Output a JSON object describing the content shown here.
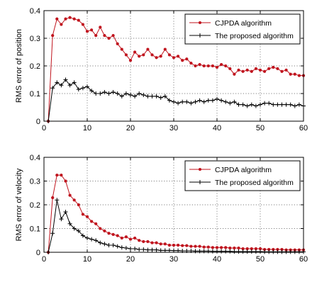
{
  "chart_data": [
    {
      "type": "line",
      "title": "",
      "xlabel": "",
      "ylabel": "RMS error of position",
      "xlim": [
        0,
        60
      ],
      "ylim": [
        0,
        0.4
      ],
      "xticks": [
        "0",
        "10",
        "20",
        "30",
        "40",
        "50",
        "60"
      ],
      "yticks": [
        "0",
        "0.1",
        "0.2",
        "0.3",
        "0.4"
      ],
      "grid": true,
      "legend_position": "top-right",
      "series": [
        {
          "name": "CJPDA algorithm",
          "color": "#c0141e",
          "marker": "dot",
          "x": [
            1,
            2,
            3,
            4,
            5,
            6,
            7,
            8,
            9,
            10,
            11,
            12,
            13,
            14,
            15,
            16,
            17,
            18,
            19,
            20,
            21,
            22,
            23,
            24,
            25,
            26,
            27,
            28,
            29,
            30,
            31,
            32,
            33,
            34,
            35,
            36,
            37,
            38,
            39,
            40,
            41,
            42,
            43,
            44,
            45,
            46,
            47,
            48,
            49,
            50,
            51,
            52,
            53,
            54,
            55,
            56,
            57,
            58,
            59,
            60
          ],
          "values": [
            0,
            0.31,
            0.37,
            0.35,
            0.37,
            0.375,
            0.37,
            0.365,
            0.35,
            0.325,
            0.33,
            0.31,
            0.34,
            0.31,
            0.3,
            0.31,
            0.28,
            0.26,
            0.24,
            0.22,
            0.25,
            0.235,
            0.24,
            0.26,
            0.24,
            0.23,
            0.235,
            0.26,
            0.24,
            0.23,
            0.235,
            0.22,
            0.225,
            0.21,
            0.2,
            0.205,
            0.2,
            0.2,
            0.2,
            0.195,
            0.205,
            0.2,
            0.19,
            0.17,
            0.185,
            0.18,
            0.185,
            0.18,
            0.19,
            0.185,
            0.18,
            0.19,
            0.195,
            0.19,
            0.18,
            0.185,
            0.17,
            0.17,
            0.165,
            0.165
          ]
        },
        {
          "name": "The proposed algorithm",
          "color": "#000000",
          "marker": "plus",
          "x": [
            1,
            2,
            3,
            4,
            5,
            6,
            7,
            8,
            9,
            10,
            11,
            12,
            13,
            14,
            15,
            16,
            17,
            18,
            19,
            20,
            21,
            22,
            23,
            24,
            25,
            26,
            27,
            28,
            29,
            30,
            31,
            32,
            33,
            34,
            35,
            36,
            37,
            38,
            39,
            40,
            41,
            42,
            43,
            44,
            45,
            46,
            47,
            48,
            49,
            50,
            51,
            52,
            53,
            54,
            55,
            56,
            57,
            58,
            59,
            60
          ],
          "values": [
            0,
            0.12,
            0.14,
            0.13,
            0.15,
            0.13,
            0.14,
            0.115,
            0.12,
            0.125,
            0.11,
            0.1,
            0.1,
            0.105,
            0.1,
            0.105,
            0.1,
            0.09,
            0.1,
            0.095,
            0.09,
            0.1,
            0.095,
            0.09,
            0.09,
            0.09,
            0.085,
            0.09,
            0.075,
            0.07,
            0.065,
            0.07,
            0.07,
            0.065,
            0.07,
            0.075,
            0.07,
            0.075,
            0.075,
            0.08,
            0.075,
            0.07,
            0.065,
            0.07,
            0.06,
            0.06,
            0.055,
            0.06,
            0.055,
            0.06,
            0.065,
            0.065,
            0.06,
            0.06,
            0.06,
            0.06,
            0.06,
            0.055,
            0.06,
            0.055
          ]
        }
      ]
    },
    {
      "type": "line",
      "title": "",
      "xlabel": "",
      "ylabel": "RMS error of velocity",
      "xlim": [
        0,
        60
      ],
      "ylim": [
        0,
        0.4
      ],
      "xticks": [
        "0",
        "10",
        "20",
        "30",
        "40",
        "50",
        "60"
      ],
      "yticks": [
        "0",
        "0.1",
        "0.2",
        "0.3",
        "0.4"
      ],
      "grid": true,
      "legend_position": "top-right",
      "series": [
        {
          "name": "CJPDA algorithm",
          "color": "#c0141e",
          "marker": "dot",
          "x": [
            1,
            2,
            3,
            4,
            5,
            6,
            7,
            8,
            9,
            10,
            11,
            12,
            13,
            14,
            15,
            16,
            17,
            18,
            19,
            20,
            21,
            22,
            23,
            24,
            25,
            26,
            27,
            28,
            29,
            30,
            31,
            32,
            33,
            34,
            35,
            36,
            37,
            38,
            39,
            40,
            41,
            42,
            43,
            44,
            45,
            46,
            47,
            48,
            49,
            50,
            51,
            52,
            53,
            54,
            55,
            56,
            57,
            58,
            59,
            60
          ],
          "values": [
            0,
            0.23,
            0.325,
            0.325,
            0.3,
            0.24,
            0.22,
            0.2,
            0.16,
            0.15,
            0.13,
            0.12,
            0.1,
            0.09,
            0.08,
            0.075,
            0.07,
            0.06,
            0.065,
            0.055,
            0.06,
            0.05,
            0.045,
            0.045,
            0.04,
            0.04,
            0.035,
            0.035,
            0.03,
            0.03,
            0.03,
            0.028,
            0.028,
            0.025,
            0.025,
            0.025,
            0.022,
            0.022,
            0.02,
            0.02,
            0.02,
            0.02,
            0.018,
            0.018,
            0.018,
            0.015,
            0.015,
            0.015,
            0.015,
            0.015,
            0.012,
            0.012,
            0.012,
            0.012,
            0.012,
            0.01,
            0.01,
            0.01,
            0.01,
            0.01
          ]
        },
        {
          "name": "The proposed algorithm",
          "color": "#000000",
          "marker": "plus",
          "x": [
            1,
            2,
            3,
            4,
            5,
            6,
            7,
            8,
            9,
            10,
            11,
            12,
            13,
            14,
            15,
            16,
            17,
            18,
            19,
            20,
            21,
            22,
            23,
            24,
            25,
            26,
            27,
            28,
            29,
            30,
            31,
            32,
            33,
            34,
            35,
            36,
            37,
            38,
            39,
            40,
            41,
            42,
            43,
            44,
            45,
            46,
            47,
            48,
            49,
            50,
            51,
            52,
            53,
            54,
            55,
            56,
            57,
            58,
            59,
            60
          ],
          "values": [
            0,
            0.08,
            0.22,
            0.14,
            0.17,
            0.12,
            0.1,
            0.09,
            0.07,
            0.06,
            0.055,
            0.05,
            0.04,
            0.035,
            0.03,
            0.03,
            0.025,
            0.02,
            0.018,
            0.015,
            0.015,
            0.012,
            0.012,
            0.01,
            0.01,
            0.01,
            0.008,
            0.008,
            0.008,
            0.007,
            0.007,
            0.006,
            0.006,
            0.006,
            0.005,
            0.005,
            0.005,
            0.005,
            0.004,
            0.004,
            0.004,
            0.004,
            0.004,
            0.003,
            0.003,
            0.003,
            0.003,
            0.003,
            0.003,
            0.003,
            0.002,
            0.002,
            0.002,
            0.002,
            0.002,
            0.002,
            0.002,
            0.002,
            0.002,
            0.002
          ]
        }
      ]
    }
  ]
}
